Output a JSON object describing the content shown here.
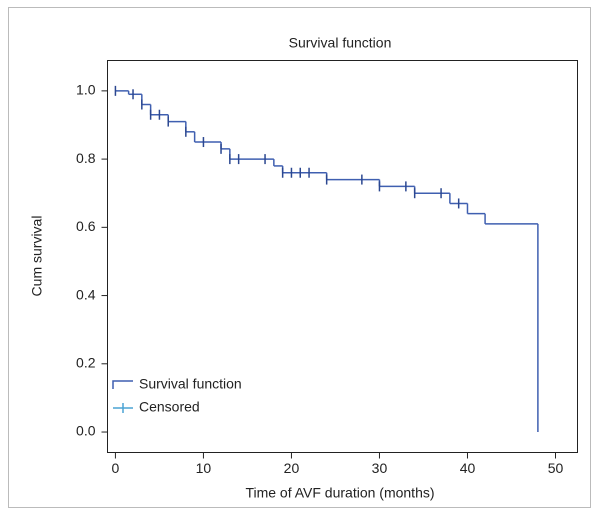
{
  "chart_data": {
    "type": "step",
    "title": "Survival function",
    "x_label": "Time of AVF duration (months)",
    "y_label": "Cum survival",
    "xlim": [
      -0.9,
      52.5
    ],
    "ylim": [
      -0.06,
      1.089
    ],
    "xticks": [
      0,
      10,
      20,
      30,
      40,
      50
    ],
    "yticks": [
      {
        "value": 0,
        "label": "0.0"
      },
      0.2,
      0.4,
      0.6,
      0.8,
      {
        "value": 1,
        "label": "1.0"
      }
    ],
    "legend": "lower left",
    "series": [
      {
        "name": "Survival function",
        "color": "#3f5fb0",
        "x": [
          0,
          1.5,
          3,
          4,
          6,
          8,
          9,
          12,
          13,
          18,
          19,
          24,
          30,
          34,
          38,
          40,
          42,
          48
        ],
        "values": [
          1.0,
          0.99,
          0.96,
          0.93,
          0.91,
          0.88,
          0.85,
          0.83,
          0.8,
          0.78,
          0.76,
          0.74,
          0.72,
          0.7,
          0.67,
          0.64,
          0.61,
          0.0
        ]
      },
      {
        "name": "Censored",
        "color": "#2b4790",
        "x": [
          0,
          2,
          3,
          4,
          5,
          6,
          8,
          10,
          12,
          13,
          14,
          17,
          19,
          20,
          21,
          22,
          24,
          28,
          30,
          33,
          34,
          37,
          39
        ],
        "values": [
          1.0,
          0.99,
          0.96,
          0.93,
          0.93,
          0.91,
          0.88,
          0.85,
          0.83,
          0.8,
          0.8,
          0.8,
          0.76,
          0.76,
          0.76,
          0.76,
          0.74,
          0.74,
          0.72,
          0.72,
          0.7,
          0.7,
          0.67
        ]
      }
    ]
  }
}
